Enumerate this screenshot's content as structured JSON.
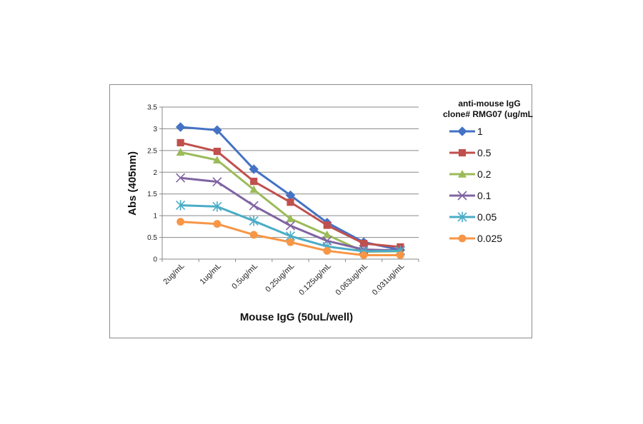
{
  "chart_data": {
    "type": "line",
    "title": "",
    "xlabel": "Mouse IgG (50uL/well)",
    "ylabel": "Abs (405nm)",
    "ylim": [
      0,
      3.5
    ],
    "yticks": [
      "0",
      "0.5",
      "1",
      "1.5",
      "2",
      "2.5",
      "3",
      "3.5"
    ],
    "categories": [
      "2ug/mL",
      "1ug/mL",
      "0.5ug/mL",
      "0.25ug/mL",
      "0.125ug/mL",
      "0.063ug/mL",
      "0.031ug/mL"
    ],
    "grid": true,
    "legend_title": [
      "anti-mouse IgG",
      "clone# RMG07 (ug/mL)"
    ],
    "legend_position": "right",
    "series": [
      {
        "name": "1",
        "color": "#4472c4",
        "marker": "diamond",
        "values": [
          3.04,
          2.97,
          2.07,
          1.47,
          0.84,
          0.39,
          0.21
        ]
      },
      {
        "name": "0.5",
        "color": "#c0504d",
        "marker": "square",
        "values": [
          2.68,
          2.48,
          1.79,
          1.31,
          0.78,
          0.36,
          0.28
        ]
      },
      {
        "name": "0.2",
        "color": "#9bbb59",
        "marker": "triangle",
        "values": [
          2.46,
          2.28,
          1.6,
          0.93,
          0.56,
          0.17,
          0.18
        ]
      },
      {
        "name": "0.1",
        "color": "#8064a2",
        "marker": "x",
        "values": [
          1.87,
          1.78,
          1.23,
          0.77,
          0.42,
          0.22,
          0.2
        ]
      },
      {
        "name": "0.05",
        "color": "#4bacc6",
        "marker": "star",
        "values": [
          1.24,
          1.21,
          0.88,
          0.53,
          0.29,
          0.18,
          0.19
        ]
      },
      {
        "name": "0.025",
        "color": "#f79646",
        "marker": "circle",
        "values": [
          0.86,
          0.81,
          0.56,
          0.39,
          0.19,
          0.09,
          0.09
        ]
      }
    ]
  }
}
